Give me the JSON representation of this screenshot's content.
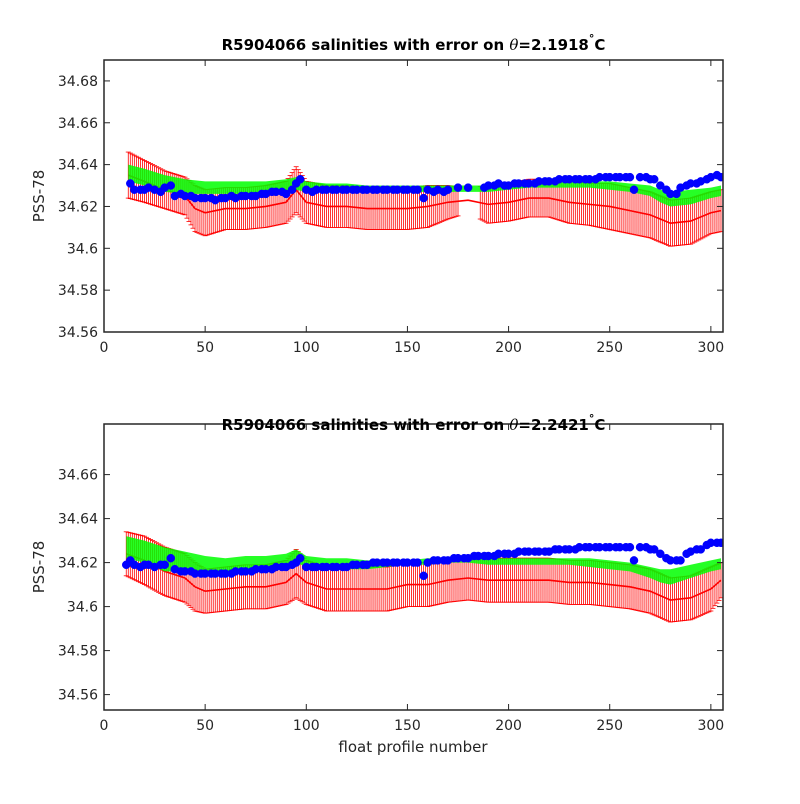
{
  "figure": {
    "xlabel": "float profile number"
  },
  "chart_data": [
    {
      "type": "scatter",
      "title_prefix": "R5904066 salinities with error on ",
      "theta_symbol": "θ",
      "theta_value": "=2.1918",
      "degree_symbol": "°",
      "unit": "C",
      "ylabel": "PSS-78",
      "xlabel": "",
      "xlim": [
        0,
        306
      ],
      "ylim": [
        34.56,
        34.69
      ],
      "xticks": [
        "0",
        "50",
        "100",
        "150",
        "200",
        "250",
        "300"
      ],
      "xtick_values": [
        0,
        50,
        100,
        150,
        200,
        250,
        300
      ],
      "yticks": [
        "34.56",
        "34.58",
        "34.6",
        "34.62",
        "34.64",
        "34.66",
        "34.68"
      ],
      "ytick_values": [
        34.56,
        34.58,
        34.6,
        34.62,
        34.64,
        34.66,
        34.68
      ],
      "colors": {
        "error": "#ff0000",
        "mapped": "#00ff00",
        "float": "#0000ff"
      },
      "series": [
        {
          "role": "mapped-salinity-error-bars",
          "x": [
            12,
            20,
            30,
            40,
            45,
            50,
            60,
            70,
            80,
            90,
            95,
            100,
            110,
            120,
            130,
            140,
            150,
            160,
            170,
            180,
            190,
            200,
            210,
            220,
            230,
            240,
            250,
            260,
            270,
            275,
            280,
            290,
            300,
            305
          ],
          "value": [
            34.635,
            34.632,
            34.628,
            34.625,
            34.619,
            34.617,
            34.619,
            34.619,
            34.62,
            34.622,
            34.628,
            34.622,
            34.62,
            34.62,
            34.619,
            34.619,
            34.619,
            34.62,
            34.622,
            34.623,
            34.621,
            34.622,
            34.624,
            34.624,
            34.622,
            34.621,
            34.62,
            34.618,
            34.616,
            34.614,
            34.612,
            34.613,
            34.617,
            34.618
          ],
          "err": [
            0.011,
            0.01,
            0.009,
            0.009,
            0.011,
            0.011,
            0.01,
            0.01,
            0.01,
            0.01,
            0.011,
            0.01,
            0.01,
            0.01,
            0.01,
            0.01,
            0.01,
            0.01,
            0.008,
            0.006,
            0.009,
            0.009,
            0.009,
            0.009,
            0.01,
            0.01,
            0.011,
            0.011,
            0.011,
            0.011,
            0.011,
            0.011,
            0.01,
            0.01
          ]
        },
        {
          "role": "mapped-salinity-band",
          "x": [
            12,
            20,
            30,
            40,
            50,
            60,
            70,
            80,
            90,
            95,
            100,
            110,
            120,
            130,
            140,
            150,
            160,
            170,
            180,
            190,
            200,
            210,
            220,
            230,
            240,
            250,
            260,
            270,
            275,
            280,
            290,
            300,
            305
          ],
          "lower": [
            34.632,
            34.63,
            34.627,
            34.626,
            34.626,
            34.626,
            34.626,
            34.626,
            34.627,
            34.628,
            34.627,
            34.627,
            34.627,
            34.627,
            34.627,
            34.627,
            34.627,
            34.627,
            34.627,
            34.627,
            34.628,
            34.629,
            34.629,
            34.629,
            34.629,
            34.628,
            34.627,
            34.625,
            34.622,
            34.62,
            34.621,
            34.624,
            34.625
          ],
          "upper": [
            34.64,
            34.638,
            34.635,
            34.633,
            34.632,
            34.632,
            34.632,
            34.632,
            34.633,
            34.634,
            34.632,
            34.631,
            34.631,
            34.63,
            34.63,
            34.63,
            34.63,
            34.63,
            34.63,
            34.63,
            34.631,
            34.632,
            34.632,
            34.632,
            34.632,
            34.632,
            34.631,
            34.63,
            34.628,
            34.627,
            34.628,
            34.629,
            34.63
          ]
        },
        {
          "role": "float-salinity",
          "x": [
            13,
            15,
            18,
            20,
            22,
            25,
            28,
            30,
            33,
            35,
            38,
            40,
            43,
            45,
            48,
            50,
            53,
            55,
            58,
            60,
            63,
            65,
            68,
            70,
            73,
            75,
            78,
            80,
            83,
            85,
            88,
            90,
            93,
            95,
            97,
            100,
            103,
            105,
            108,
            110,
            113,
            115,
            118,
            120,
            123,
            125,
            128,
            130,
            133,
            135,
            138,
            140,
            143,
            145,
            148,
            150,
            153,
            155,
            158,
            160,
            163,
            165,
            168,
            170,
            175,
            180,
            188,
            190,
            193,
            195,
            198,
            200,
            203,
            205,
            208,
            210,
            213,
            215,
            218,
            220,
            223,
            225,
            228,
            230,
            233,
            235,
            238,
            240,
            243,
            245,
            248,
            250,
            253,
            255,
            258,
            260,
            262,
            265,
            268,
            270,
            272,
            275,
            278,
            280,
            283,
            285,
            288,
            290,
            293,
            295,
            298,
            300,
            303,
            305
          ],
          "y": [
            34.631,
            34.628,
            34.628,
            34.628,
            34.629,
            34.628,
            34.627,
            34.629,
            34.63,
            34.625,
            34.626,
            34.625,
            34.625,
            34.624,
            34.624,
            34.624,
            34.624,
            34.623,
            34.624,
            34.624,
            34.625,
            34.624,
            34.625,
            34.625,
            34.625,
            34.625,
            34.626,
            34.626,
            34.627,
            34.627,
            34.627,
            34.626,
            34.628,
            34.631,
            34.633,
            34.628,
            34.627,
            34.628,
            34.628,
            34.628,
            34.628,
            34.628,
            34.628,
            34.628,
            34.628,
            34.628,
            34.628,
            34.628,
            34.628,
            34.628,
            34.628,
            34.628,
            34.628,
            34.628,
            34.628,
            34.628,
            34.628,
            34.628,
            34.624,
            34.628,
            34.627,
            34.628,
            34.627,
            34.628,
            34.629,
            34.629,
            34.629,
            34.63,
            34.63,
            34.631,
            34.63,
            34.63,
            34.631,
            34.631,
            34.631,
            34.631,
            34.631,
            34.632,
            34.632,
            34.632,
            34.632,
            34.633,
            34.633,
            34.633,
            34.633,
            34.633,
            34.633,
            34.633,
            34.633,
            34.634,
            34.634,
            34.634,
            34.634,
            34.634,
            34.634,
            34.634,
            34.628,
            34.634,
            34.634,
            34.633,
            34.633,
            34.63,
            34.628,
            34.626,
            34.626,
            34.629,
            34.63,
            34.631,
            34.631,
            34.632,
            34.633,
            34.634,
            34.635,
            34.634
          ]
        }
      ]
    },
    {
      "type": "scatter",
      "title_prefix": "R5904066 salinities with error on ",
      "theta_symbol": "θ",
      "theta_value": "=2.2421",
      "degree_symbol": "°",
      "unit": "C",
      "ylabel": "PSS-78",
      "xlabel": "float profile number",
      "xlim": [
        0,
        306
      ],
      "ylim": [
        34.553,
        34.683
      ],
      "xticks": [
        "0",
        "50",
        "100",
        "150",
        "200",
        "250",
        "300"
      ],
      "xtick_values": [
        0,
        50,
        100,
        150,
        200,
        250,
        300
      ],
      "yticks": [
        "34.56",
        "34.58",
        "34.6",
        "34.62",
        "34.64",
        "34.66"
      ],
      "ytick_values": [
        34.56,
        34.58,
        34.6,
        34.62,
        34.64,
        34.66
      ],
      "colors": {
        "error": "#ff0000",
        "mapped": "#00ff00",
        "float": "#0000ff"
      },
      "series": [
        {
          "role": "mapped-salinity-error-bars",
          "x": [
            11,
            20,
            30,
            40,
            45,
            50,
            60,
            70,
            80,
            90,
            95,
            100,
            110,
            120,
            130,
            140,
            150,
            160,
            170,
            180,
            190,
            200,
            210,
            220,
            230,
            240,
            250,
            260,
            270,
            275,
            280,
            290,
            300,
            305
          ],
          "value": [
            34.624,
            34.621,
            34.616,
            34.613,
            34.609,
            34.607,
            34.608,
            34.609,
            34.609,
            34.611,
            34.615,
            34.611,
            34.608,
            34.608,
            34.608,
            34.608,
            34.61,
            34.61,
            34.612,
            34.613,
            34.612,
            34.612,
            34.612,
            34.612,
            34.611,
            34.611,
            34.61,
            34.609,
            34.607,
            34.605,
            34.603,
            34.604,
            34.608,
            34.612
          ],
          "err": [
            0.01,
            0.011,
            0.011,
            0.011,
            0.011,
            0.01,
            0.01,
            0.01,
            0.01,
            0.01,
            0.011,
            0.01,
            0.01,
            0.01,
            0.01,
            0.01,
            0.01,
            0.01,
            0.01,
            0.01,
            0.01,
            0.01,
            0.01,
            0.01,
            0.01,
            0.01,
            0.01,
            0.01,
            0.01,
            0.01,
            0.01,
            0.01,
            0.01,
            0.008
          ]
        },
        {
          "role": "mapped-salinity-band",
          "x": [
            11,
            20,
            30,
            40,
            50,
            60,
            70,
            80,
            90,
            95,
            100,
            110,
            120,
            130,
            140,
            150,
            160,
            170,
            180,
            190,
            200,
            210,
            220,
            230,
            240,
            250,
            260,
            270,
            275,
            280,
            290,
            300,
            305
          ],
          "lower": [
            34.622,
            34.62,
            34.616,
            34.616,
            34.616,
            34.616,
            34.617,
            34.617,
            34.618,
            34.62,
            34.618,
            34.617,
            34.617,
            34.617,
            34.618,
            34.619,
            34.619,
            34.62,
            34.62,
            34.619,
            34.619,
            34.619,
            34.619,
            34.619,
            34.618,
            34.617,
            34.616,
            34.613,
            34.611,
            34.61,
            34.613,
            34.616,
            34.617
          ],
          "upper": [
            34.632,
            34.63,
            34.627,
            34.625,
            34.623,
            34.622,
            34.623,
            34.623,
            34.624,
            34.626,
            34.623,
            34.622,
            34.622,
            34.621,
            34.621,
            34.621,
            34.622,
            34.622,
            34.622,
            34.622,
            34.622,
            34.622,
            34.622,
            34.622,
            34.622,
            34.621,
            34.62,
            34.618,
            34.617,
            34.617,
            34.619,
            34.621,
            34.622
          ]
        },
        {
          "role": "float-salinity",
          "x": [
            11,
            13,
            15,
            18,
            20,
            22,
            25,
            28,
            30,
            33,
            35,
            38,
            40,
            43,
            45,
            48,
            50,
            53,
            55,
            58,
            60,
            63,
            65,
            68,
            70,
            73,
            75,
            78,
            80,
            83,
            85,
            88,
            90,
            93,
            95,
            97,
            100,
            103,
            105,
            108,
            110,
            113,
            115,
            118,
            120,
            123,
            125,
            128,
            130,
            133,
            135,
            138,
            140,
            143,
            145,
            148,
            150,
            153,
            155,
            158,
            160,
            163,
            165,
            168,
            170,
            173,
            175,
            178,
            180,
            183,
            185,
            188,
            190,
            193,
            195,
            198,
            200,
            203,
            205,
            208,
            210,
            213,
            215,
            218,
            220,
            223,
            225,
            228,
            230,
            233,
            235,
            238,
            240,
            243,
            245,
            248,
            250,
            253,
            255,
            258,
            260,
            262,
            265,
            268,
            270,
            272,
            275,
            278,
            280,
            283,
            285,
            288,
            290,
            293,
            295,
            298,
            300,
            303,
            305
          ],
          "y": [
            34.619,
            34.621,
            34.619,
            34.618,
            34.619,
            34.619,
            34.618,
            34.619,
            34.619,
            34.622,
            34.617,
            34.616,
            34.616,
            34.616,
            34.615,
            34.615,
            34.615,
            34.615,
            34.615,
            34.615,
            34.615,
            34.615,
            34.616,
            34.616,
            34.616,
            34.616,
            34.617,
            34.617,
            34.617,
            34.617,
            34.618,
            34.618,
            34.618,
            34.619,
            34.62,
            34.622,
            34.618,
            34.618,
            34.618,
            34.618,
            34.618,
            34.618,
            34.618,
            34.618,
            34.618,
            34.619,
            34.619,
            34.619,
            34.619,
            34.62,
            34.62,
            34.62,
            34.62,
            34.62,
            34.62,
            34.62,
            34.62,
            34.62,
            34.62,
            34.614,
            34.62,
            34.621,
            34.621,
            34.621,
            34.621,
            34.622,
            34.622,
            34.622,
            34.622,
            34.623,
            34.623,
            34.623,
            34.623,
            34.623,
            34.624,
            34.624,
            34.624,
            34.624,
            34.625,
            34.625,
            34.625,
            34.625,
            34.625,
            34.625,
            34.625,
            34.626,
            34.626,
            34.626,
            34.626,
            34.626,
            34.627,
            34.627,
            34.627,
            34.627,
            34.627,
            34.627,
            34.627,
            34.627,
            34.627,
            34.627,
            34.627,
            34.621,
            34.627,
            34.627,
            34.626,
            34.626,
            34.624,
            34.622,
            34.621,
            34.621,
            34.621,
            34.624,
            34.625,
            34.626,
            34.626,
            34.628,
            34.629,
            34.629,
            34.629
          ]
        }
      ]
    }
  ]
}
